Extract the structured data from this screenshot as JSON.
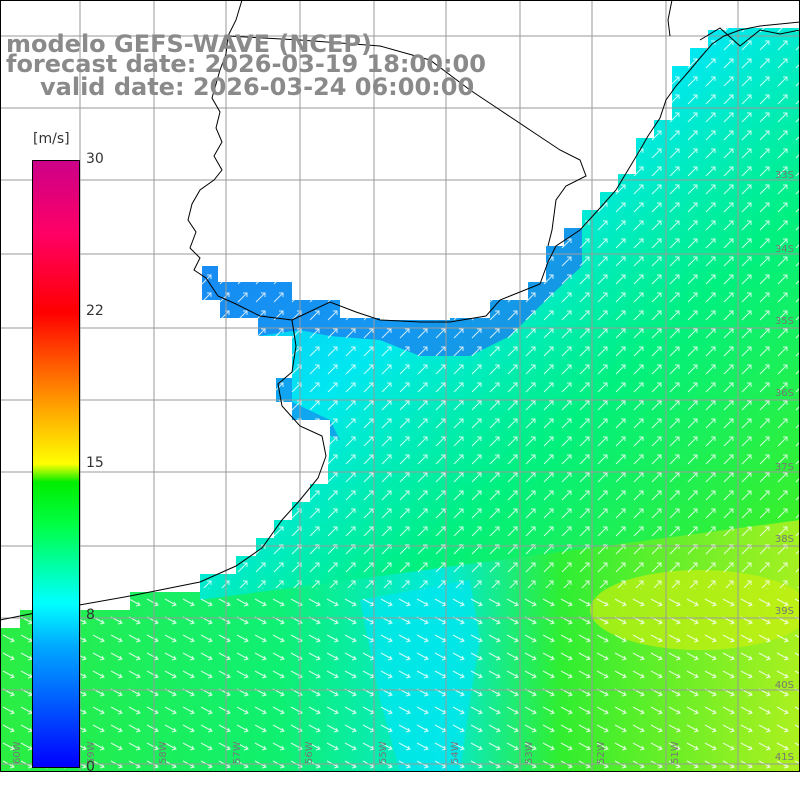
{
  "title": {
    "line1": "modelo GEFS-WAVE (NCEP)",
    "line2": "forecast date: 2026-03-19 18:00:00",
    "line3": "valid date: 2026-03-24 06:00:00"
  },
  "colorbar": {
    "unit": "[m/s]",
    "ticks": [
      "30",
      "22",
      "15",
      "8",
      "0"
    ],
    "colors": [
      "#0000ff",
      "#00aaff",
      "#00ffff",
      "#00ff44",
      "#00ee00",
      "#ffff00",
      "#ff8800",
      "#ff0000",
      "#ff0066",
      "#cc0088"
    ]
  },
  "lat_labels": [
    "33S",
    "34S",
    "35S",
    "36S",
    "37S",
    "38S",
    "39S",
    "40S",
    "41S"
  ],
  "lon_labels": [
    "60W",
    "59W",
    "58W",
    "57W",
    "56W",
    "55W",
    "54W",
    "53W",
    "52W",
    "51W"
  ],
  "colors": {
    "land": "#ffffff",
    "coast": "#000000",
    "grid": "#9a9a9a",
    "arrows": "#ffffff"
  }
}
